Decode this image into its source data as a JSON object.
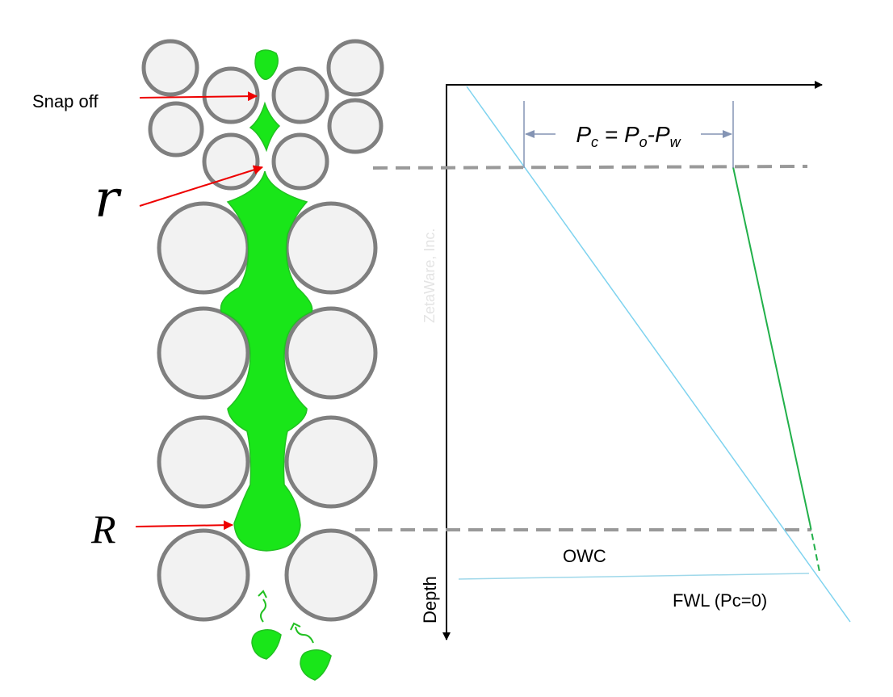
{
  "labels": {
    "snap_off": "Snap off",
    "small_r": "r",
    "big_r": "R",
    "owc": "OWC",
    "fwl": "FWL (Pc=0)",
    "depth": "Depth",
    "watermark": "ZetaWare, Inc."
  },
  "equation": {
    "p1": "P",
    "s1": "c",
    "p2": " = P",
    "s2": "o",
    "p3": "-P",
    "s3": "w"
  }
}
